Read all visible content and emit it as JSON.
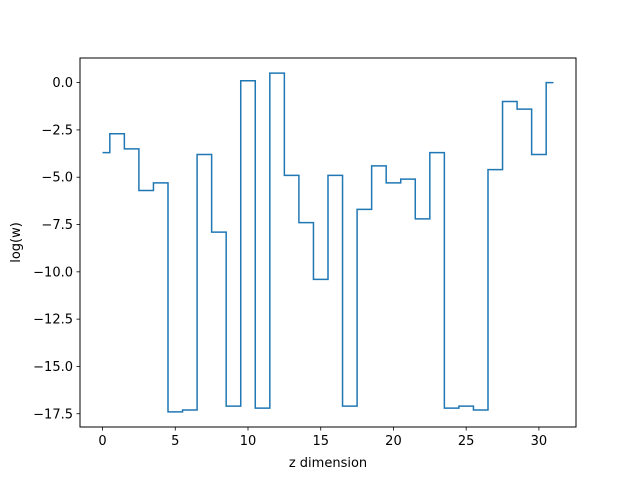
{
  "chart_data": {
    "type": "line",
    "drawstyle": "steps-mid",
    "title": "",
    "xlabel": "z dimension",
    "ylabel": "log(w)",
    "xlim": [
      -1.55,
      32.55
    ],
    "ylim": [
      -18.2,
      1.3
    ],
    "grid": false,
    "legend": "none",
    "x_ticks": [
      0,
      5,
      10,
      15,
      20,
      25,
      30
    ],
    "x_tick_labels": [
      "0",
      "5",
      "10",
      "15",
      "20",
      "25",
      "30"
    ],
    "y_ticks": [
      0.0,
      -2.5,
      -5.0,
      -7.5,
      -10.0,
      -12.5,
      -15.0,
      -17.5
    ],
    "y_tick_labels": [
      "0.0",
      "−2.5",
      "−5.0",
      "−7.5",
      "−10.0",
      "−12.5",
      "−15.0",
      "−17.5"
    ],
    "series": [
      {
        "color": "#1f77b4",
        "x": [
          0,
          1,
          2,
          3,
          4,
          5,
          6,
          7,
          8,
          9,
          10,
          11,
          12,
          13,
          14,
          15,
          16,
          17,
          18,
          19,
          20,
          21,
          22,
          23,
          24,
          25,
          26,
          27,
          28,
          29,
          30,
          31
        ],
        "y": [
          -3.7,
          -2.7,
          -3.5,
          -5.7,
          -5.3,
          -17.4,
          -17.3,
          -3.8,
          -7.9,
          -17.1,
          0.1,
          -17.2,
          0.5,
          -4.9,
          -7.4,
          -10.4,
          -4.9,
          -17.1,
          -6.7,
          -4.4,
          -5.3,
          -5.1,
          -7.2,
          -3.7,
          -17.2,
          -17.1,
          -17.3,
          -4.6,
          -1.0,
          -1.4,
          -3.8,
          0.0
        ]
      }
    ]
  }
}
